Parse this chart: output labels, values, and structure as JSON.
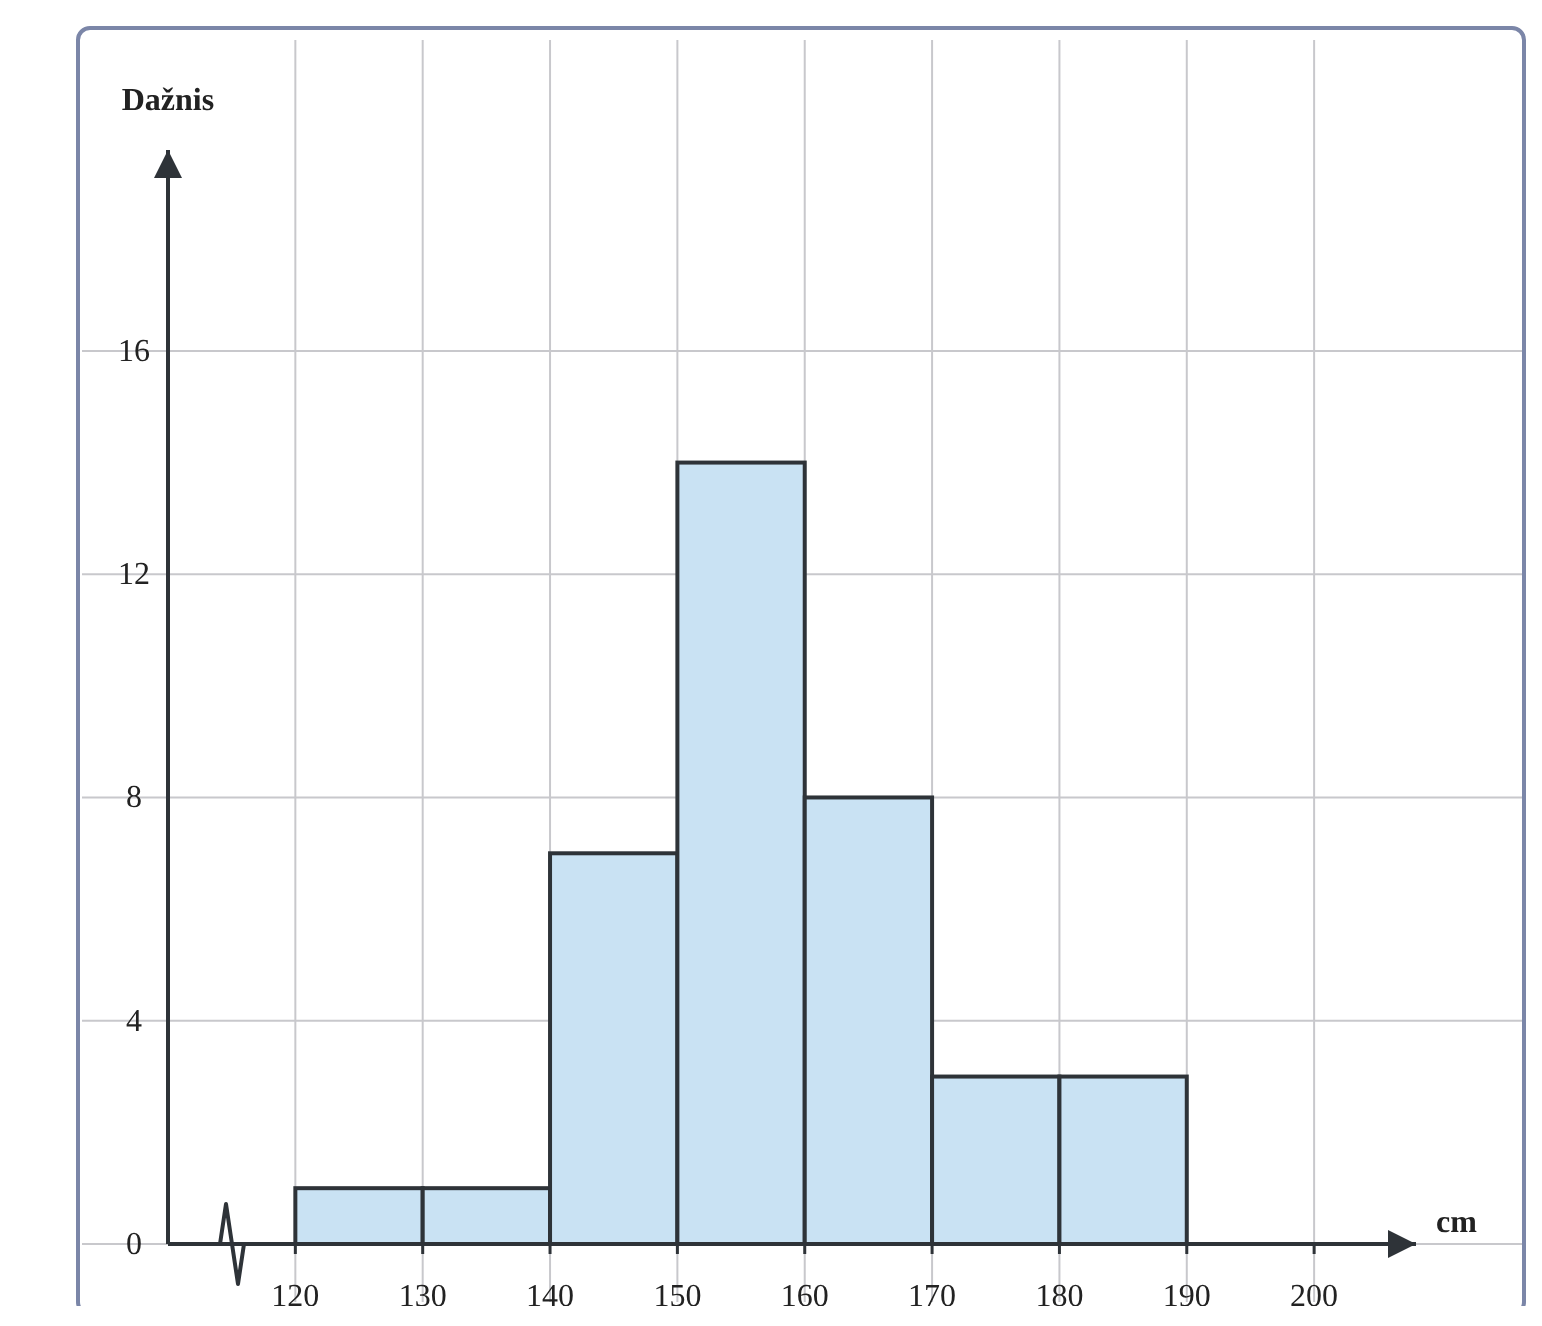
{
  "chart_data": {
    "type": "histogram",
    "xlabel": "cm",
    "ylabel": "Dažnis",
    "bins": [
      120,
      130,
      140,
      150,
      160,
      170,
      180,
      190
    ],
    "values": [
      1,
      1,
      7,
      14,
      8,
      3,
      3
    ],
    "color": "#c9e2f3",
    "xlim": [
      110,
      208
    ],
    "ylim": [
      0,
      19.6
    ],
    "xticks": [
      120,
      130,
      140,
      150,
      160,
      170,
      180,
      190,
      200
    ],
    "yticks": [
      0,
      4,
      8,
      12,
      16
    ],
    "grid": true
  }
}
